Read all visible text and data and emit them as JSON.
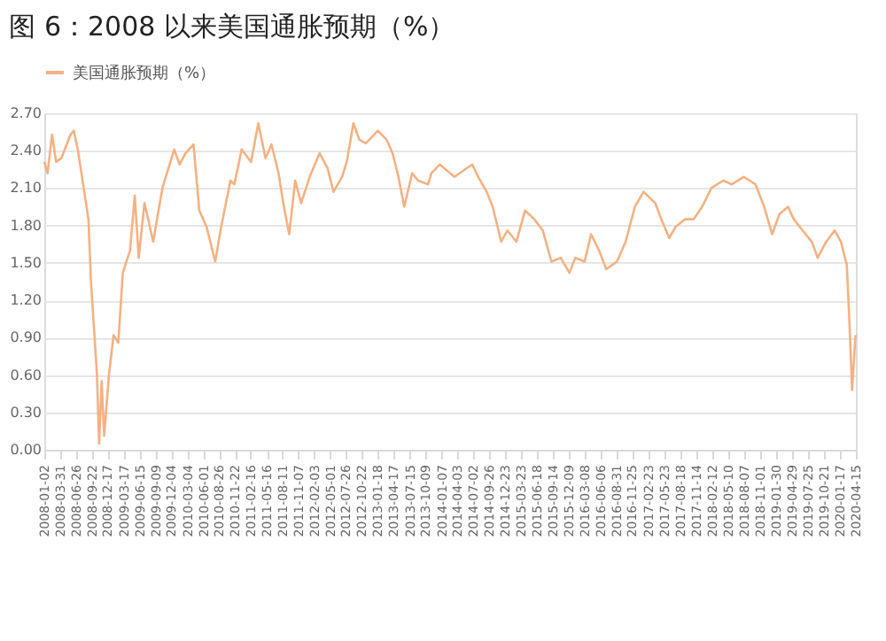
{
  "chart_data": {
    "type": "line",
    "title": "图 6：2008 以来美国通胀预期（%）",
    "x": [
      "2008-01-02",
      "2008-01-20",
      "2008-02-14",
      "2008-03-07",
      "2008-04-05",
      "2008-05-26",
      "2008-06-13",
      "2008-07-05",
      "2008-08-07",
      "2008-09-02",
      "2008-09-16",
      "2008-10-05",
      "2008-10-19",
      "2008-10-31",
      "2008-11-14",
      "2008-11-28",
      "2008-12-25",
      "2009-01-19",
      "2009-02-14",
      "2009-03-11",
      "2009-04-20",
      "2009-05-16",
      "2009-06-07",
      "2009-07-09",
      "2009-08-26",
      "2009-10-16",
      "2009-12-20",
      "2010-01-19",
      "2010-02-21",
      "2010-04-06",
      "2010-05-08",
      "2010-06-17",
      "2010-08-04",
      "2010-09-06",
      "2010-10-27",
      "2010-11-18",
      "2010-12-28",
      "2011-02-18",
      "2011-03-30",
      "2011-05-09",
      "2011-06-11",
      "2011-07-20",
      "2011-08-15",
      "2011-09-17",
      "2011-10-20",
      "2011-11-22",
      "2012-01-08",
      "2012-03-03",
      "2012-04-16",
      "2012-05-19",
      "2012-07-05",
      "2012-07-31",
      "2012-09-06",
      "2012-10-08",
      "2012-11-14",
      "2013-01-19",
      "2013-03-08",
      "2013-04-10",
      "2013-05-13",
      "2013-06-14",
      "2013-07-28",
      "2013-08-30",
      "2013-10-24",
      "2013-11-11",
      "2013-12-28",
      "2014-03-18",
      "2014-06-25",
      "2014-07-28",
      "2014-09-13",
      "2014-10-16",
      "2014-12-02",
      "2015-01-05",
      "2015-02-24",
      "2015-04-13",
      "2015-06-03",
      "2015-07-20",
      "2015-09-06",
      "2015-10-27",
      "2015-12-14",
      "2016-01-16",
      "2016-03-07",
      "2016-04-12",
      "2016-05-26",
      "2016-07-05",
      "2016-09-02",
      "2016-10-20",
      "2016-12-10",
      "2017-01-27",
      "2017-04-02",
      "2017-05-05",
      "2017-06-18",
      "2017-07-24",
      "2017-09-13",
      "2017-10-31",
      "2017-12-17",
      "2018-02-06",
      "2018-04-13",
      "2018-05-30",
      "2018-08-04",
      "2018-10-08",
      "2018-11-25",
      "2019-01-08",
      "2019-02-17",
      "2019-04-06",
      "2019-05-08",
      "2019-06-25",
      "2019-08-15",
      "2019-09-17",
      "2019-11-03",
      "2019-12-20",
      "2020-01-23",
      "2020-02-25",
      "2020-03-10",
      "2020-03-25",
      "2020-04-13"
    ],
    "series": [
      {
        "name": "美国通胀预期（%）",
        "color": "#f4b183",
        "values": [
          2.31,
          2.22,
          2.53,
          2.31,
          2.34,
          2.53,
          2.56,
          2.41,
          2.1,
          1.85,
          1.35,
          0.92,
          0.61,
          0.05,
          0.55,
          0.11,
          0.61,
          0.92,
          0.86,
          1.42,
          1.6,
          2.04,
          1.54,
          1.98,
          1.67,
          2.1,
          2.41,
          2.29,
          2.38,
          2.45,
          1.92,
          1.79,
          1.51,
          1.79,
          2.16,
          2.13,
          2.41,
          2.31,
          2.62,
          2.34,
          2.45,
          2.22,
          1.98,
          1.73,
          2.16,
          1.98,
          2.19,
          2.38,
          2.26,
          2.07,
          2.19,
          2.31,
          2.62,
          2.49,
          2.46,
          2.56,
          2.49,
          2.38,
          2.19,
          1.95,
          2.22,
          2.16,
          2.13,
          2.22,
          2.29,
          2.19,
          2.29,
          2.19,
          2.07,
          1.95,
          1.67,
          1.76,
          1.67,
          1.92,
          1.85,
          1.76,
          1.51,
          1.54,
          1.42,
          1.54,
          1.51,
          1.73,
          1.6,
          1.45,
          1.51,
          1.67,
          1.95,
          2.07,
          1.98,
          1.85,
          1.7,
          1.79,
          1.85,
          1.85,
          1.95,
          2.1,
          2.16,
          2.13,
          2.19,
          2.13,
          1.95,
          1.73,
          1.89,
          1.95,
          1.85,
          1.76,
          1.67,
          1.54,
          1.67,
          1.76,
          1.67,
          1.48,
          1.04,
          0.48,
          0.92
        ]
      }
    ],
    "xlim": [
      "2008-01-02",
      "2020-04-15"
    ],
    "xticks": [
      "2008-01-02",
      "2008-03-31",
      "2008-06-26",
      "2008-09-22",
      "2008-12-17",
      "2009-03-17",
      "2009-06-15",
      "2009-09-09",
      "2009-12-04",
      "2010-03-04",
      "2010-06-01",
      "2010-08-26",
      "2010-11-22",
      "2011-02-16",
      "2011-05-16",
      "2011-08-11",
      "2011-11-07",
      "2012-02-03",
      "2012-05-01",
      "2012-07-26",
      "2012-10-22",
      "2013-01-18",
      "2013-04-17",
      "2013-07-15",
      "2013-10-09",
      "2014-01-07",
      "2014-04-03",
      "2014-07-02",
      "2014-09-26",
      "2014-12-23",
      "2015-03-23",
      "2015-06-18",
      "2015-09-14",
      "2015-12-09",
      "2016-03-08",
      "2016-06-06",
      "2016-08-31",
      "2016-11-25",
      "2017-02-23",
      "2017-05-23",
      "2017-08-18",
      "2017-11-14",
      "2018-02-12",
      "2018-05-10",
      "2018-08-07",
      "2018-11-01",
      "2019-01-30",
      "2019-04-29",
      "2019-07-25",
      "2019-10-21",
      "2020-01-17",
      "2020-04-15"
    ],
    "ylim": [
      0,
      2.7
    ],
    "yticks": [
      {
        "value": 0,
        "label": "0.00"
      },
      {
        "value": 0.3,
        "label": "0.30"
      },
      {
        "value": 0.6,
        "label": "0.60"
      },
      {
        "value": 0.9,
        "label": "0.90"
      },
      {
        "value": 1.2,
        "label": "1.20"
      },
      {
        "value": 1.5,
        "label": "1.50"
      },
      {
        "value": 1.8,
        "label": "1.80"
      },
      {
        "value": 2.1,
        "label": "2.10"
      },
      {
        "value": 2.4,
        "label": "2.40"
      },
      {
        "value": 2.7,
        "label": "2.70"
      }
    ],
    "grid": "y",
    "legend": "top",
    "marker": "none",
    "line_style": "solid"
  }
}
